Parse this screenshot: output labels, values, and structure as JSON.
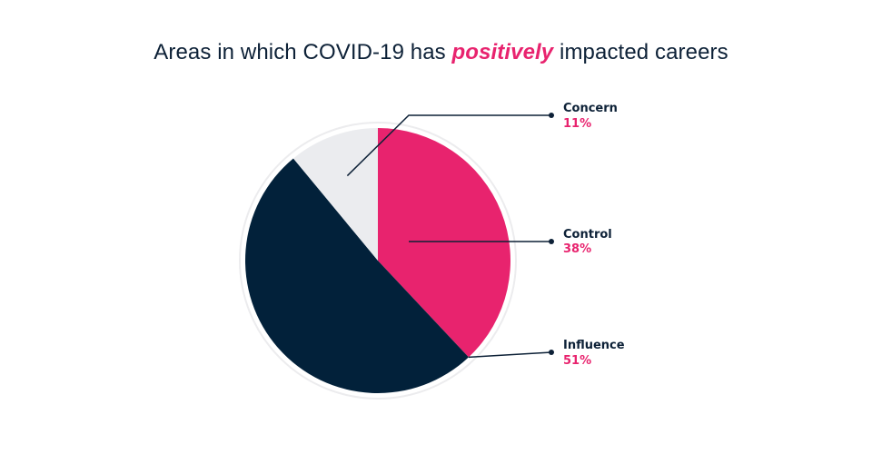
{
  "title": {
    "prefix": "Areas in which COVID-19 has ",
    "highlight": "positively",
    "suffix": " impacted careers"
  },
  "colors": {
    "title": "#0d2137",
    "highlight": "#e8236e",
    "label_name": "#0d2137",
    "label_value": "#e8236e",
    "leader_line": "#0d2137",
    "pie_ring": "#ececee"
  },
  "chart_data": {
    "type": "pie",
    "start": "12 o'clock",
    "direction": "clockwise",
    "slices": [
      {
        "label": "Control",
        "value": 38,
        "display": "38%",
        "color": "#e8236e"
      },
      {
        "label": "Influence",
        "value": 51,
        "display": "51%",
        "color": "#02213a"
      },
      {
        "label": "Concern",
        "value": 11,
        "display": "11%",
        "color": "#ebecef"
      }
    ]
  }
}
